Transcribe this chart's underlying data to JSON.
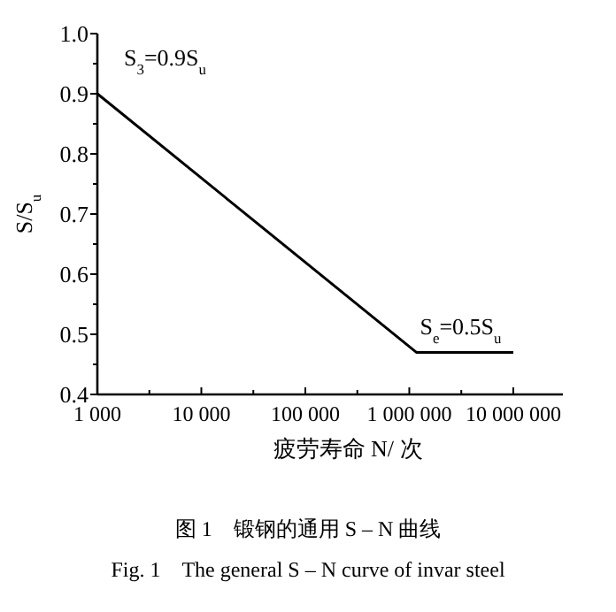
{
  "chart_data": {
    "type": "line",
    "title": "图 1　锻钢的通用 S – N 曲线",
    "subtitle": "Fig. 1　The general S – N curve of invar steel",
    "xlabel": "疲劳寿命 N/ 次",
    "ylabel": "S/S$_{u}$",
    "x": [
      1000,
      1170000,
      10000000
    ],
    "series": [
      {
        "color": "#000000",
        "values": [
          0.9,
          0.47,
          0.47
        ]
      }
    ],
    "annotations": [
      {
        "text": "S$_{3}$=0.9S$_{u}$",
        "x": 1000,
        "y": 0.9
      },
      {
        "text": "S$_{e}$=0.5S$_{u}$",
        "x": 1170000,
        "y": 0.47
      }
    ],
    "log": "x",
    "xlim": [
      1000,
      30000000
    ],
    "xticks": [
      {
        "value": 1000,
        "label": "1 000"
      },
      {
        "value": 3162,
        "label": null
      },
      {
        "value": 10000,
        "label": "10 000"
      },
      {
        "value": 31623,
        "label": null
      },
      {
        "value": 100000,
        "label": "100 000"
      },
      {
        "value": 316228,
        "label": null
      },
      {
        "value": 1000000,
        "label": "1 000 000"
      },
      {
        "value": 3162278,
        "label": null
      },
      {
        "value": 10000000,
        "label": "10 000 000"
      }
    ],
    "ylim": [
      0.4,
      1.0
    ],
    "yticks": [
      {
        "value": 0.4,
        "label": "0.4"
      },
      {
        "value": 0.45,
        "label": null
      },
      {
        "value": 0.5,
        "label": "0.5"
      },
      {
        "value": 0.55,
        "label": null
      },
      {
        "value": 0.6,
        "label": "0.6"
      },
      {
        "value": 0.65,
        "label": null
      },
      {
        "value": 0.7,
        "label": "0.7"
      },
      {
        "value": 0.75,
        "label": null
      },
      {
        "value": 0.8,
        "label": "0.8"
      },
      {
        "value": 0.85,
        "label": null
      },
      {
        "value": 0.9,
        "label": "0.9"
      },
      {
        "value": 0.95,
        "label": null
      },
      {
        "value": 1.0,
        "label": "1.0"
      }
    ],
    "grid": false,
    "marker": "none",
    "line_style": "solid"
  }
}
